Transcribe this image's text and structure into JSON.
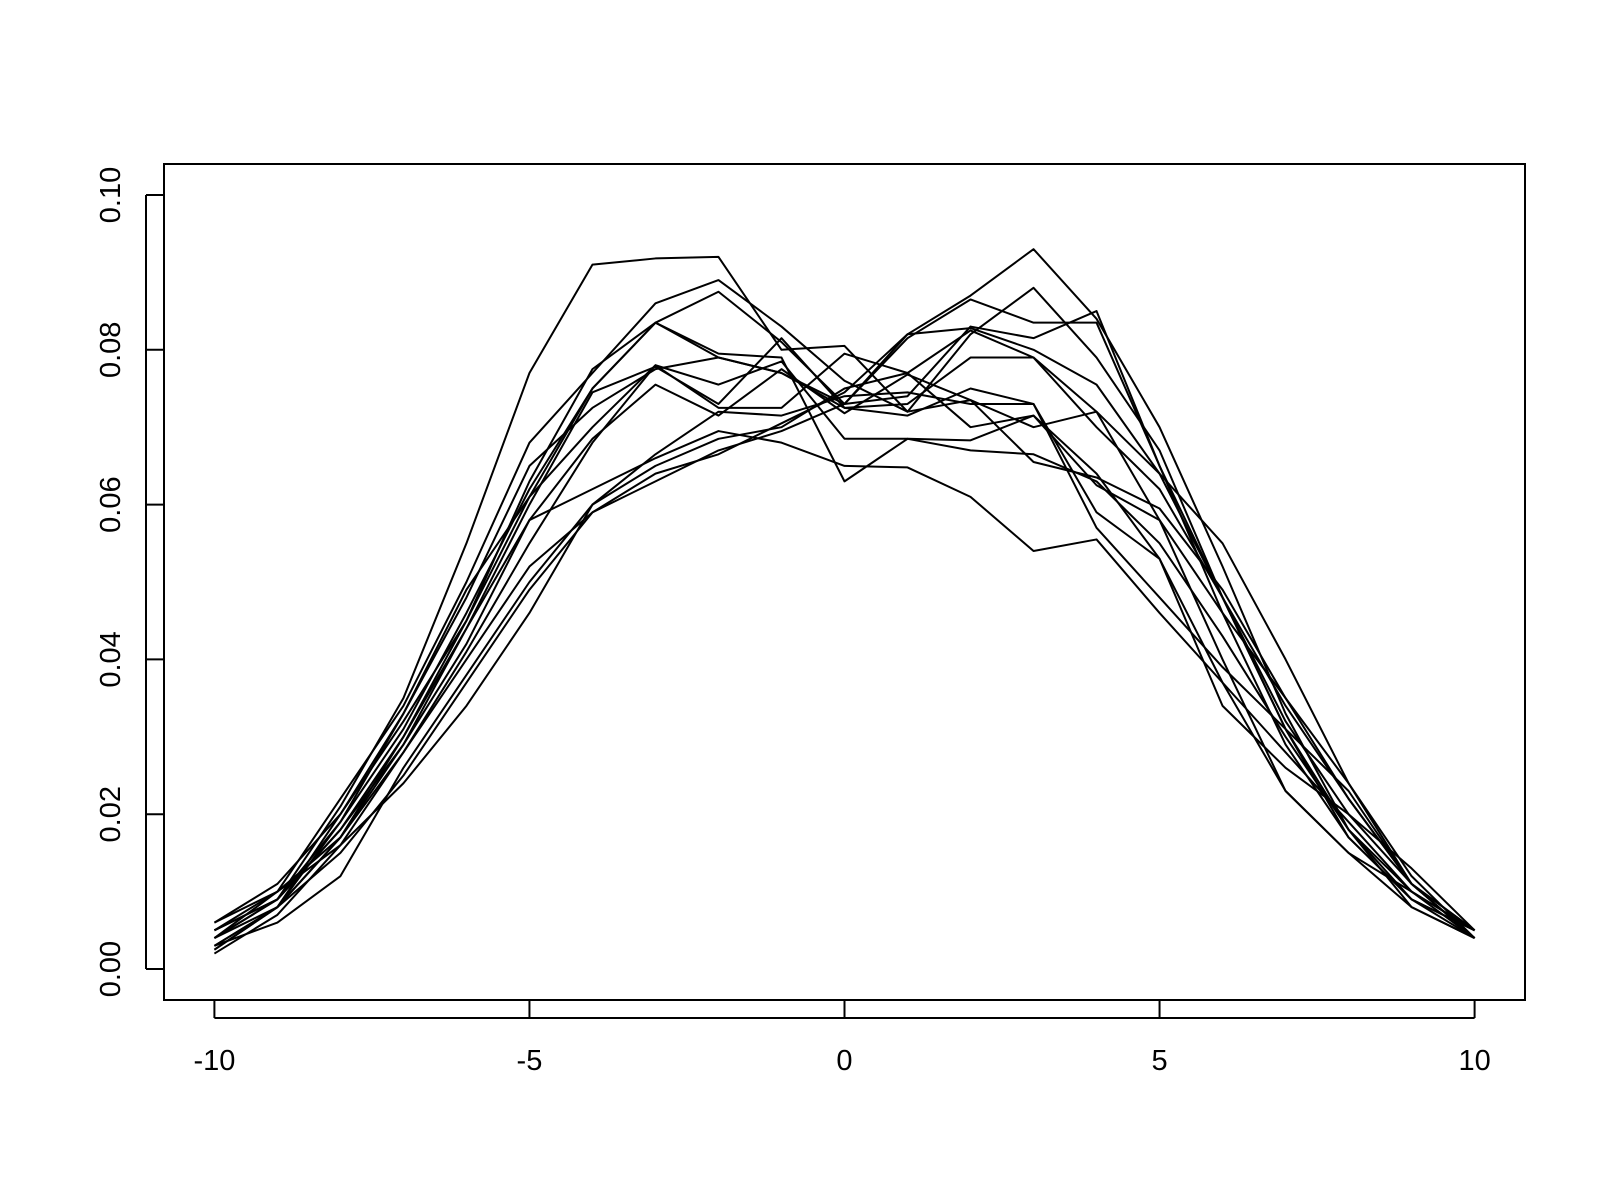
{
  "chart_data": {
    "type": "line",
    "x": [
      -10,
      -9,
      -8,
      -7,
      -6,
      -5,
      -4,
      -3,
      -2,
      -1,
      0,
      1,
      2,
      3,
      4,
      5,
      6,
      7,
      8,
      9,
      10
    ],
    "xlim": [
      -10.8,
      10.8
    ],
    "xticks": [
      -10,
      -5,
      0,
      5,
      10
    ],
    "ylim": [
      -0.004,
      0.104
    ],
    "yticks": [
      {
        "value": 0,
        "label": "0.00"
      },
      {
        "value": 0.02,
        "label": "0.02"
      },
      {
        "value": 0.04,
        "label": "0.04"
      },
      {
        "value": 0.06,
        "label": "0.06"
      },
      {
        "value": 0.08,
        "label": "0.08"
      },
      {
        "value": 0.1,
        "label": "0.10"
      }
    ],
    "series": [
      {
        "color": "#000000",
        "values": [
          0.004,
          0.009,
          0.021,
          0.035,
          0.055,
          0.077,
          0.091,
          0.0918,
          0.092,
          0.08,
          0.0805,
          0.072,
          0.0735,
          0.07,
          0.072,
          0.064,
          0.055,
          0.04,
          0.024,
          0.011,
          0.004
        ]
      },
      {
        "color": "#000000",
        "values": [
          0.003,
          0.008,
          0.017,
          0.03,
          0.045,
          0.061,
          0.075,
          0.0835,
          0.079,
          0.077,
          0.073,
          0.082,
          0.087,
          0.093,
          0.084,
          0.07,
          0.052,
          0.033,
          0.018,
          0.009,
          0.004
        ]
      },
      {
        "color": "#000000",
        "values": [
          0.005,
          0.01,
          0.022,
          0.034,
          0.05,
          0.068,
          0.077,
          0.086,
          0.089,
          0.083,
          0.076,
          0.072,
          0.082,
          0.088,
          0.079,
          0.067,
          0.048,
          0.031,
          0.018,
          0.008,
          0.004
        ]
      },
      {
        "color": "#000000",
        "values": [
          0.004,
          0.009,
          0.019,
          0.031,
          0.046,
          0.062,
          0.075,
          0.0835,
          0.0875,
          0.081,
          0.073,
          0.074,
          0.083,
          0.0815,
          0.085,
          0.065,
          0.046,
          0.029,
          0.017,
          0.009,
          0.005
        ]
      },
      {
        "color": "#000000",
        "values": [
          0.005,
          0.009,
          0.018,
          0.029,
          0.042,
          0.058,
          0.062,
          0.066,
          0.0695,
          0.068,
          0.065,
          0.0648,
          0.061,
          0.054,
          0.0555,
          0.046,
          0.037,
          0.028,
          0.019,
          0.01,
          0.005
        ]
      },
      {
        "color": "#000000",
        "values": [
          0.006,
          0.011,
          0.02,
          0.032,
          0.045,
          0.063,
          0.0775,
          0.0835,
          0.0795,
          0.079,
          0.063,
          0.0685,
          0.067,
          0.0665,
          0.063,
          0.055,
          0.043,
          0.03,
          0.018,
          0.01,
          0.005
        ]
      },
      {
        "color": "#000000",
        "values": [
          0.002,
          0.007,
          0.016,
          0.028,
          0.041,
          0.055,
          0.068,
          0.078,
          0.0755,
          0.0785,
          0.0685,
          0.0685,
          0.0683,
          0.0715,
          0.064,
          0.053,
          0.037,
          0.023,
          0.015,
          0.008,
          0.004
        ]
      },
      {
        "color": "#000000",
        "values": [
          0.0025,
          0.008,
          0.015,
          0.025,
          0.037,
          0.049,
          0.059,
          0.064,
          0.0665,
          0.0705,
          0.0745,
          0.082,
          0.0828,
          0.08,
          0.0755,
          0.064,
          0.048,
          0.032,
          0.02,
          0.011,
          0.005
        ]
      },
      {
        "color": "#000000",
        "values": [
          0.004,
          0.01,
          0.017,
          0.028,
          0.04,
          0.052,
          0.059,
          0.063,
          0.067,
          0.0695,
          0.073,
          0.0815,
          0.0865,
          0.0835,
          0.0835,
          0.065,
          0.048,
          0.031,
          0.017,
          0.009,
          0.005
        ]
      },
      {
        "color": "#000000",
        "values": [
          0.003,
          0.006,
          0.012,
          0.026,
          0.038,
          0.05,
          0.06,
          0.065,
          0.0685,
          0.07,
          0.075,
          0.077,
          0.0825,
          0.079,
          0.072,
          0.058,
          0.04,
          0.023,
          0.015,
          0.01,
          0.004
        ]
      },
      {
        "color": "#000000",
        "values": [
          0.006,
          0.01,
          0.016,
          0.024,
          0.034,
          0.046,
          0.06,
          0.0665,
          0.072,
          0.0715,
          0.074,
          0.0745,
          0.073,
          0.073,
          0.059,
          0.053,
          0.034,
          0.026,
          0.02,
          0.013,
          0.005
        ]
      },
      {
        "color": "#000000",
        "values": [
          0.004,
          0.008,
          0.02,
          0.033,
          0.048,
          0.065,
          0.0725,
          0.0775,
          0.079,
          0.077,
          0.0725,
          0.073,
          0.079,
          0.079,
          0.07,
          0.062,
          0.048,
          0.034,
          0.022,
          0.011,
          0.005
        ]
      },
      {
        "color": "#000000",
        "values": [
          0.005,
          0.009,
          0.018,
          0.03,
          0.044,
          0.058,
          0.0685,
          0.0755,
          0.0715,
          0.0775,
          0.0718,
          0.0768,
          0.0735,
          0.0655,
          0.0635,
          0.0595,
          0.049,
          0.035,
          0.022,
          0.011,
          0.004
        ]
      },
      {
        "color": "#000000",
        "values": [
          0.003,
          0.008,
          0.017,
          0.029,
          0.044,
          0.06,
          0.0745,
          0.0778,
          0.073,
          0.0815,
          0.0725,
          0.0715,
          0.075,
          0.073,
          0.057,
          0.048,
          0.039,
          0.031,
          0.023,
          0.011,
          0.004
        ]
      },
      {
        "color": "#000000",
        "values": [
          0.0025,
          0.008,
          0.019,
          0.033,
          0.049,
          0.061,
          0.07,
          0.078,
          0.0725,
          0.0725,
          0.0795,
          0.077,
          0.07,
          0.0715,
          0.0625,
          0.058,
          0.046,
          0.035,
          0.024,
          0.012,
          0.004
        ]
      }
    ]
  }
}
